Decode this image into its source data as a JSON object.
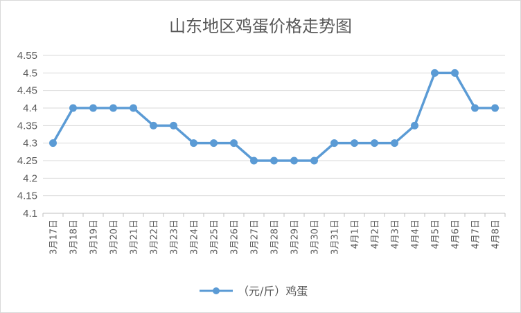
{
  "chart_data": {
    "type": "line",
    "title": "山东地区鸡蛋价格走势图",
    "categories": [
      "3月17日",
      "3月18日",
      "3月19日",
      "3月20日",
      "3月21日",
      "3月22日",
      "3月23日",
      "3月24日",
      "3月25日",
      "3月26日",
      "3月27日",
      "3月28日",
      "3月29日",
      "3月30日",
      "3月31日",
      "4月1日",
      "4月2日",
      "4月3日",
      "4月4日",
      "4月5日",
      "4月6日",
      "4月7日",
      "4月8日"
    ],
    "series": [
      {
        "name": "（元/斤）鸡蛋",
        "color": "#5b9bd5",
        "values": [
          4.3,
          4.4,
          4.4,
          4.4,
          4.4,
          4.35,
          4.35,
          4.3,
          4.3,
          4.3,
          4.25,
          4.25,
          4.25,
          4.25,
          4.3,
          4.3,
          4.3,
          4.3,
          4.35,
          4.5,
          4.5,
          4.4,
          4.4
        ]
      }
    ],
    "y_ticks": [
      "4.1",
      "4.15",
      "4.2",
      "4.25",
      "4.3",
      "4.35",
      "4.4",
      "4.45",
      "4.5",
      "4.55"
    ],
    "ylim": [
      4.1,
      4.55
    ],
    "grid": true,
    "legend_position": "bottom",
    "xlabel": "",
    "ylabel": ""
  }
}
